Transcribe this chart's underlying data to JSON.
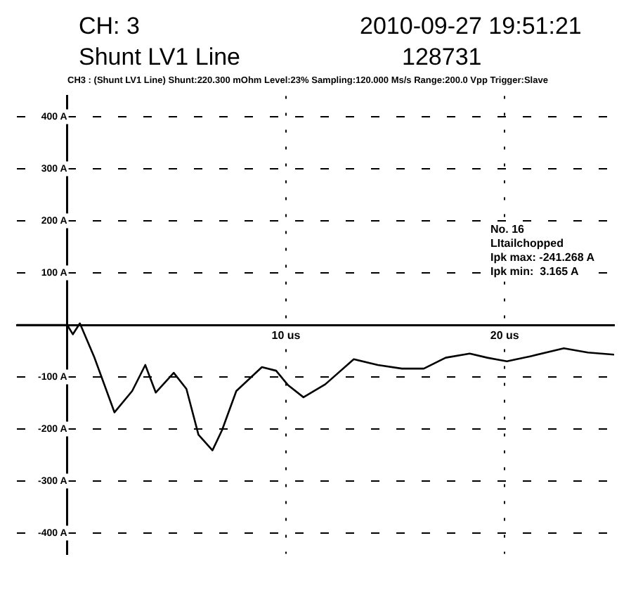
{
  "chart_data": {
    "type": "line",
    "title": "CH: 3",
    "subtitle": "Shunt LV1 Line",
    "annotations": [
      "2010-09-27 19:51:21",
      "128731",
      "CH3 : (Shunt LV1 Line)  Shunt:220.300 mOhm  Level:23%  Sampling:120.000 Ms/s  Range:200.0 Vpp  Trigger:Slave",
      "No. 16",
      "LItailchopped",
      "Ipk max: -241.268 A",
      "Ipk min:  3.165 A"
    ],
    "x": [
      -2.3,
      0,
      0.26,
      0.58,
      1.23,
      2.16,
      2.97,
      3.57,
      4.05,
      4.87,
      5.45,
      6.0,
      6.64,
      7.08,
      7.73,
      8.9,
      9.55,
      10.1,
      10.8,
      11.8,
      13.1,
      14.2,
      15.3,
      16.3,
      17.3,
      18.4,
      19.2,
      20.1,
      21.2,
      22.7,
      23.8,
      25.0
    ],
    "series": [
      {
        "color": "#000000",
        "values": [
          0,
          0,
          -18,
          3,
          -61,
          -168,
          -127,
          -77,
          -130,
          -92,
          -123,
          -211,
          -241,
          -202,
          -127,
          -81,
          -88,
          -116,
          -139,
          -114,
          -66,
          -77,
          -84,
          -84,
          -63,
          -55,
          -63,
          -70,
          -60,
          -45,
          -53,
          -57
        ]
      }
    ],
    "xlim": [
      -2.3,
      25
    ],
    "ylim": [
      -440,
      440
    ],
    "xticks": [
      {
        "value": 10,
        "label": "10 us"
      },
      {
        "value": 20,
        "label": "20 us"
      }
    ],
    "yticks": [
      {
        "value": -400,
        "label": "-400 A"
      },
      {
        "value": -300,
        "label": "-300 A"
      },
      {
        "value": -200,
        "label": "-200 A"
      },
      {
        "value": -100,
        "label": "-100 A"
      },
      {
        "value": 100,
        "label": "100 A"
      },
      {
        "value": 200,
        "label": "200 A"
      },
      {
        "value": 300,
        "label": "300 A"
      },
      {
        "value": 400,
        "label": "400 A"
      }
    ],
    "grid": true,
    "legend": false,
    "marker": "none",
    "line_style": "solid"
  }
}
